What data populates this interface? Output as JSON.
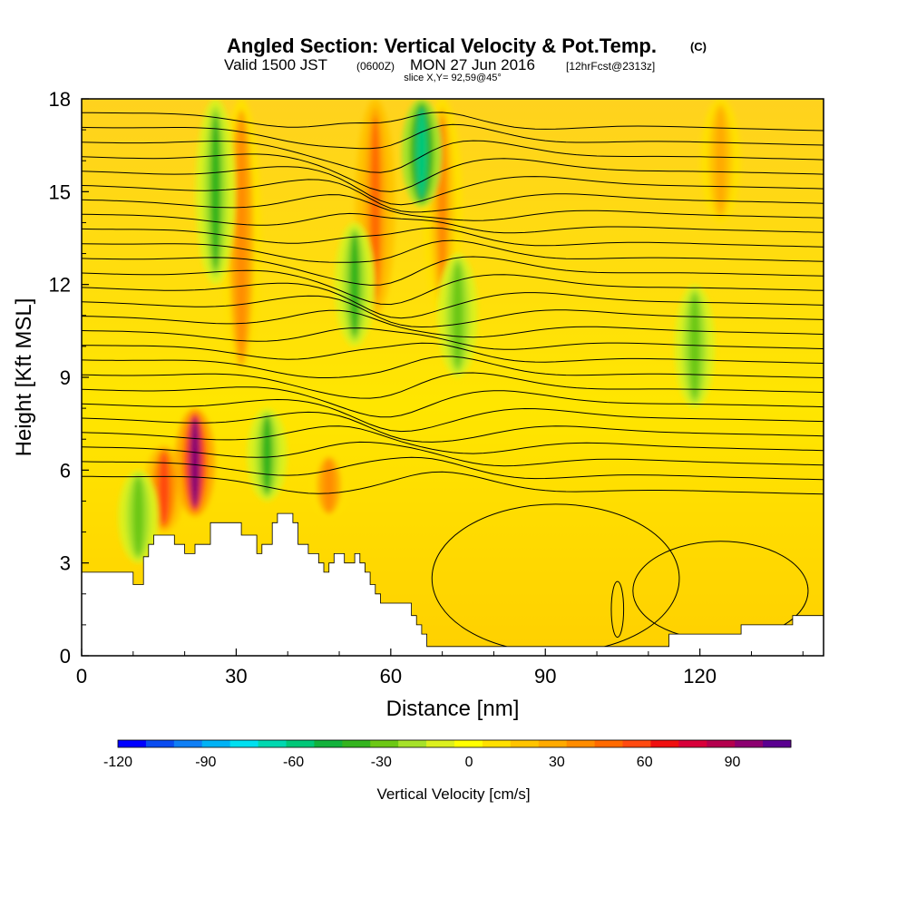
{
  "title": "Angled Section: Vertical Velocity & Pot.Temp.",
  "title_unit": "(C)",
  "subtitle_pre": "Valid 1500 JST",
  "subtitle_utc": "(0600Z)",
  "subtitle_date": "MON 27 Jun 2016",
  "subtitle_fcst": "[12hrFcst@2313z]",
  "slice_label": "slice X,Y= 92,59@45°",
  "chart_data": {
    "type": "heatmap",
    "xlabel": "Distance [nm]",
    "ylabel": "Height [Kft MSL]",
    "xlim": [
      0,
      144
    ],
    "ylim": [
      0,
      18
    ],
    "x_ticks": [
      "0",
      "30",
      "60",
      "90",
      "120"
    ],
    "y_ticks": [
      "0",
      "3",
      "6",
      "9",
      "12",
      "15",
      "18"
    ],
    "x_tick_values": [
      0,
      30,
      60,
      90,
      120
    ],
    "y_tick_values": [
      0,
      3,
      6,
      9,
      12,
      15,
      18
    ],
    "colorbar": {
      "label": "Vertical Velocity [cm/s]",
      "tick_labels": [
        "-120",
        "-90",
        "-60",
        "-30",
        "0",
        "30",
        "60",
        "90"
      ],
      "tick_values": [
        -120,
        -90,
        -60,
        -30,
        0,
        30,
        60,
        90
      ],
      "range": [
        -120,
        110
      ],
      "colors": [
        "#0000ff",
        "#0a4cf0",
        "#0f7ff5",
        "#00b2f5",
        "#00e0f0",
        "#00d8b0",
        "#00c878",
        "#12b23c",
        "#34b41e",
        "#6cc814",
        "#a6e22a",
        "#dcf01e",
        "#ffff00",
        "#ffe000",
        "#ffc400",
        "#ffaa00",
        "#ff8c00",
        "#ff6a00",
        "#ff4a10",
        "#f01010",
        "#d8003a",
        "#b4004e",
        "#8c0070",
        "#5a0090"
      ]
    },
    "updrafts": [
      {
        "x": 16,
        "z_bottom": 4.0,
        "z_top": 6.8,
        "w": 60
      },
      {
        "x": 22,
        "z_bottom": 4.5,
        "z_top": 8.0,
        "w": 95
      },
      {
        "x": 31,
        "z_bottom": 9.0,
        "z_top": 18.0,
        "w": 40
      },
      {
        "x": 48,
        "z_bottom": 4.5,
        "z_top": 6.5,
        "w": 40
      },
      {
        "x": 57,
        "z_bottom": 11.0,
        "z_top": 18.0,
        "w": 45
      },
      {
        "x": 70,
        "z_bottom": 11.0,
        "z_top": 18.0,
        "w": 35
      },
      {
        "x": 124,
        "z_bottom": 14.0,
        "z_top": 18.0,
        "w": 25
      }
    ],
    "downdrafts": [
      {
        "x": 11,
        "z_bottom": 3.0,
        "z_top": 6.0,
        "w": -30
      },
      {
        "x": 26,
        "z_bottom": 12.0,
        "z_top": 18.0,
        "w": -35
      },
      {
        "x": 36,
        "z_bottom": 5.0,
        "z_top": 8.0,
        "w": -35
      },
      {
        "x": 53,
        "z_bottom": 10.0,
        "z_top": 14.0,
        "w": -35
      },
      {
        "x": 66,
        "z_bottom": 14.5,
        "z_top": 18.0,
        "w": -60
      },
      {
        "x": 73,
        "z_bottom": 9.0,
        "z_top": 13.0,
        "w": -25
      },
      {
        "x": 119,
        "z_bottom": 8.0,
        "z_top": 12.0,
        "w": -25
      }
    ],
    "terrain": [
      {
        "x": 0,
        "z": 2.7
      },
      {
        "x": 10,
        "z": 2.7
      },
      {
        "x": 10,
        "z": 2.3
      },
      {
        "x": 12,
        "z": 2.3
      },
      {
        "x": 12,
        "z": 3.2
      },
      {
        "x": 13,
        "z": 3.2
      },
      {
        "x": 13,
        "z": 3.6
      },
      {
        "x": 14,
        "z": 3.6
      },
      {
        "x": 14,
        "z": 3.9
      },
      {
        "x": 18,
        "z": 3.9
      },
      {
        "x": 18,
        "z": 3.6
      },
      {
        "x": 20,
        "z": 3.6
      },
      {
        "x": 20,
        "z": 3.3
      },
      {
        "x": 22,
        "z": 3.3
      },
      {
        "x": 22,
        "z": 3.6
      },
      {
        "x": 25,
        "z": 3.6
      },
      {
        "x": 25,
        "z": 4.3
      },
      {
        "x": 31,
        "z": 4.3
      },
      {
        "x": 31,
        "z": 3.9
      },
      {
        "x": 34,
        "z": 3.9
      },
      {
        "x": 34,
        "z": 3.3
      },
      {
        "x": 35,
        "z": 3.3
      },
      {
        "x": 35,
        "z": 3.6
      },
      {
        "x": 37,
        "z": 3.6
      },
      {
        "x": 37,
        "z": 4.3
      },
      {
        "x": 38,
        "z": 4.3
      },
      {
        "x": 38,
        "z": 4.6
      },
      {
        "x": 41,
        "z": 4.6
      },
      {
        "x": 41,
        "z": 4.3
      },
      {
        "x": 42,
        "z": 4.3
      },
      {
        "x": 42,
        "z": 3.6
      },
      {
        "x": 44,
        "z": 3.6
      },
      {
        "x": 44,
        "z": 3.3
      },
      {
        "x": 46,
        "z": 3.3
      },
      {
        "x": 46,
        "z": 3.0
      },
      {
        "x": 47,
        "z": 3.0
      },
      {
        "x": 47,
        "z": 2.7
      },
      {
        "x": 48,
        "z": 2.7
      },
      {
        "x": 48,
        "z": 3.0
      },
      {
        "x": 49,
        "z": 3.0
      },
      {
        "x": 49,
        "z": 3.3
      },
      {
        "x": 51,
        "z": 3.3
      },
      {
        "x": 51,
        "z": 3.0
      },
      {
        "x": 53,
        "z": 3.0
      },
      {
        "x": 53,
        "z": 3.3
      },
      {
        "x": 54,
        "z": 3.3
      },
      {
        "x": 54,
        "z": 3.0
      },
      {
        "x": 55,
        "z": 3.0
      },
      {
        "x": 55,
        "z": 2.7
      },
      {
        "x": 56,
        "z": 2.7
      },
      {
        "x": 56,
        "z": 2.3
      },
      {
        "x": 57,
        "z": 2.3
      },
      {
        "x": 57,
        "z": 2.0
      },
      {
        "x": 58,
        "z": 2.0
      },
      {
        "x": 58,
        "z": 1.7
      },
      {
        "x": 64,
        "z": 1.7
      },
      {
        "x": 64,
        "z": 1.3
      },
      {
        "x": 65,
        "z": 1.3
      },
      {
        "x": 65,
        "z": 1.0
      },
      {
        "x": 66,
        "z": 1.0
      },
      {
        "x": 66,
        "z": 0.7
      },
      {
        "x": 67,
        "z": 0.7
      },
      {
        "x": 67,
        "z": 0.3
      },
      {
        "x": 114,
        "z": 0.3
      },
      {
        "x": 114,
        "z": 0.7
      },
      {
        "x": 128,
        "z": 0.7
      },
      {
        "x": 128,
        "z": 1.0
      },
      {
        "x": 138,
        "z": 1.0
      },
      {
        "x": 138,
        "z": 1.3
      },
      {
        "x": 144,
        "z": 1.3
      }
    ]
  }
}
